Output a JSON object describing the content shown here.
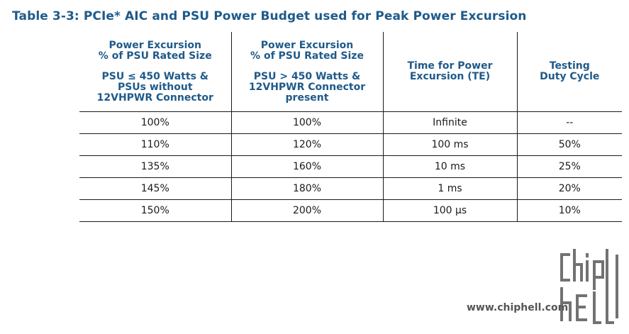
{
  "caption": "Table 3-3: PCIe* AIC and PSU Power Budget used for Peak Power Excursion",
  "table": {
    "headers": [
      {
        "lines": [
          "Power Excursion",
          "% of PSU Rated Size"
        ],
        "sub": [
          "PSU ≤ 450 Watts &",
          "PSUs without",
          "12VHPWR Connector"
        ]
      },
      {
        "lines": [
          "Power Excursion",
          "% of PSU Rated Size"
        ],
        "sub": [
          "PSU > 450 Watts &",
          "12VHPWR Connector",
          "present"
        ]
      },
      {
        "lines": [
          "Time for Power",
          "Excursion (TE)"
        ],
        "sub": []
      },
      {
        "lines": [
          "Testing",
          "Duty Cycle"
        ],
        "sub": []
      }
    ],
    "rows": [
      [
        "100%",
        "100%",
        "Infinite",
        "--"
      ],
      [
        "110%",
        "120%",
        "100 ms",
        "50%"
      ],
      [
        "135%",
        "160%",
        "10 ms",
        "25%"
      ],
      [
        "145%",
        "180%",
        "1 ms",
        "20%"
      ],
      [
        "150%",
        "200%",
        "100 µs",
        "10%"
      ]
    ]
  },
  "watermark": {
    "url": "www.chiphell.com",
    "logo": "chip hell"
  }
}
